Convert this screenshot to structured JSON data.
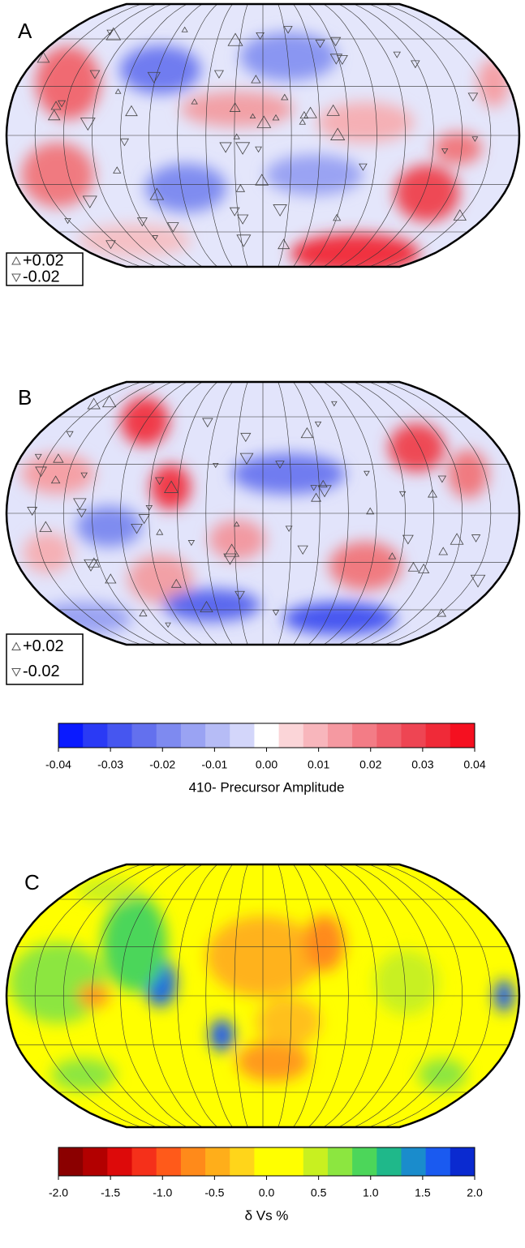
{
  "panels": [
    {
      "label": "A",
      "legend": [
        "+0.02",
        "-0.02"
      ]
    },
    {
      "label": "B",
      "legend": [
        "+0.02",
        "-0.02"
      ]
    },
    {
      "label": "C"
    }
  ],
  "colorbars": [
    {
      "colors": [
        "#0a1aff",
        "#2a3af5",
        "#4656f0",
        "#6370ee",
        "#7e8af0",
        "#9aa3f3",
        "#b6bcf6",
        "#d3d6fa",
        "#ffffff",
        "#fbd5d8",
        "#f8b6bc",
        "#f599a1",
        "#f37c86",
        "#f0606c",
        "#ee4553",
        "#f02a38",
        "#f51020"
      ],
      "range": [
        -0.04,
        0.04
      ],
      "ticks": [
        -0.04,
        -0.03,
        -0.02,
        -0.01,
        {
          "value": 0,
          "label": "0.00"
        },
        0.01,
        0.02,
        0.03,
        0.04
      ],
      "title": "410- Precursor Amplitude"
    },
    {
      "colors": [
        "#8b0000",
        "#b20000",
        "#dd0a0a",
        "#f5301a",
        "#ff5a1a",
        "#ff8a1a",
        "#ffae1a",
        "#ffd51a",
        "#ffff00",
        "#ffff00",
        "#c8f020",
        "#8ce640",
        "#4cd65a",
        "#1fb88a",
        "#1a8ccc",
        "#1a5af0",
        "#0a2ad0"
      ],
      "range": [
        -2.0,
        2.0
      ],
      "ticks": [
        {
          "value": -2,
          "label": "-2.0"
        },
        -1.5,
        {
          "value": -1,
          "label": "-1.0"
        },
        -0.5,
        {
          "value": 0,
          "label": "0.0"
        },
        0.5,
        {
          "value": 1,
          "label": "1.0"
        },
        1.5,
        {
          "value": 2,
          "label": "2.0"
        }
      ],
      "title": "δ Vs %"
    }
  ]
}
